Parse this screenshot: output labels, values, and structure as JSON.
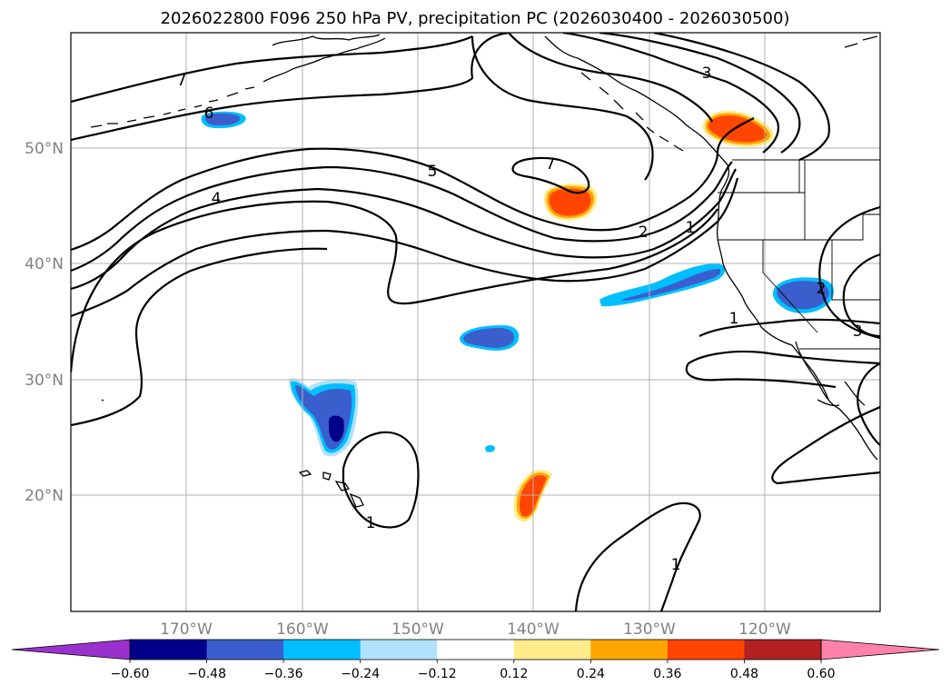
{
  "chart_data": {
    "type": "map",
    "title": "2026022800 F096 250 hPa PV, precipitation PC (2026030400 - 2026030500)",
    "map": {
      "lon_range": [
        -180,
        -110
      ],
      "lat_range": [
        10,
        60
      ],
      "lon_ticks": [
        -170,
        -160,
        -150,
        -140,
        -130,
        -120
      ],
      "lat_ticks": [
        20,
        30,
        40,
        50
      ],
      "lon_tick_labels": [
        "170°W",
        "160°W",
        "150°W",
        "140°W",
        "130°W",
        "120°W"
      ],
      "lat_tick_labels": [
        "20°N",
        "30°N",
        "40°N",
        "50°N"
      ],
      "grid": true
    },
    "pv_contours": {
      "levels": [
        1,
        2,
        3,
        4,
        5,
        6,
        7
      ],
      "labels": [
        {
          "text": "7",
          "lon": -179.8,
          "lat": 56.3
        },
        {
          "text": "6",
          "lon": -178,
          "lat": 53.1
        },
        {
          "text": "5",
          "lon": -151.9,
          "lat": 47.9
        },
        {
          "text": "4",
          "lon": -174.7,
          "lat": 45.7
        },
        {
          "text": "7",
          "lon": -139.5,
          "lat": 48.6
        },
        {
          "text": "3",
          "lon": -123.2,
          "lat": 56.8
        },
        {
          "text": "2",
          "lon": -131.6,
          "lat": 42.8
        },
        {
          "text": "1",
          "lon": -127.4,
          "lat": 43.5
        },
        {
          "text": "1",
          "lon": -122.6,
          "lat": 35.4
        },
        {
          "text": "2",
          "lon": -115.2,
          "lat": 37.8
        },
        {
          "text": "3",
          "lon": -111.8,
          "lat": 34.4
        },
        {
          "text": "1",
          "lon": -156.2,
          "lat": 17.7
        },
        {
          "text": "1",
          "lon": -132.3,
          "lat": 13.8
        }
      ]
    },
    "precipitation_pc": {
      "colorbar_bounds": [
        -0.6,
        -0.48,
        -0.36,
        -0.24,
        -0.12,
        0.12,
        0.24,
        0.36,
        0.48,
        0.6
      ],
      "colorbar_tick_labels": [
        "−0.60",
        "−0.48",
        "−0.36",
        "−0.24",
        "−0.12",
        "0.12",
        "0.24",
        "0.36",
        "0.48",
        "0.60"
      ],
      "colorbar_colors": [
        "#9932cc",
        "#00008b",
        "#3a5fcd",
        "#00bfff",
        "#b0e2ff",
        "#ffffff",
        "#ffec8b",
        "#ffa500",
        "#ff4500",
        "#b22222",
        "#ff82ab"
      ],
      "colorbar_extend": "both",
      "regions": [
        {
          "sign": "negative",
          "lon": -168,
          "lat": 52.5,
          "peak": -0.4
        },
        {
          "sign": "negative",
          "lon": -157.5,
          "lat": 27,
          "peak": -0.55
        },
        {
          "sign": "negative",
          "lon": -144,
          "lat": 33.7,
          "peak": -0.4
        },
        {
          "sign": "negative",
          "lon": -144,
          "lat": 23.8,
          "peak": -0.3
        },
        {
          "sign": "negative",
          "lon": -129,
          "lat": 37.5,
          "peak": -0.4
        },
        {
          "sign": "negative",
          "lon": -117,
          "lat": 37.5,
          "peak": -0.4
        },
        {
          "sign": "positive",
          "lon": -140,
          "lat": 45.5,
          "peak": 0.45
        },
        {
          "sign": "positive",
          "lon": -122,
          "lat": 51.5,
          "peak": 0.45
        },
        {
          "sign": "positive",
          "lon": -140.5,
          "lat": 20,
          "peak": 0.45
        }
      ]
    }
  }
}
